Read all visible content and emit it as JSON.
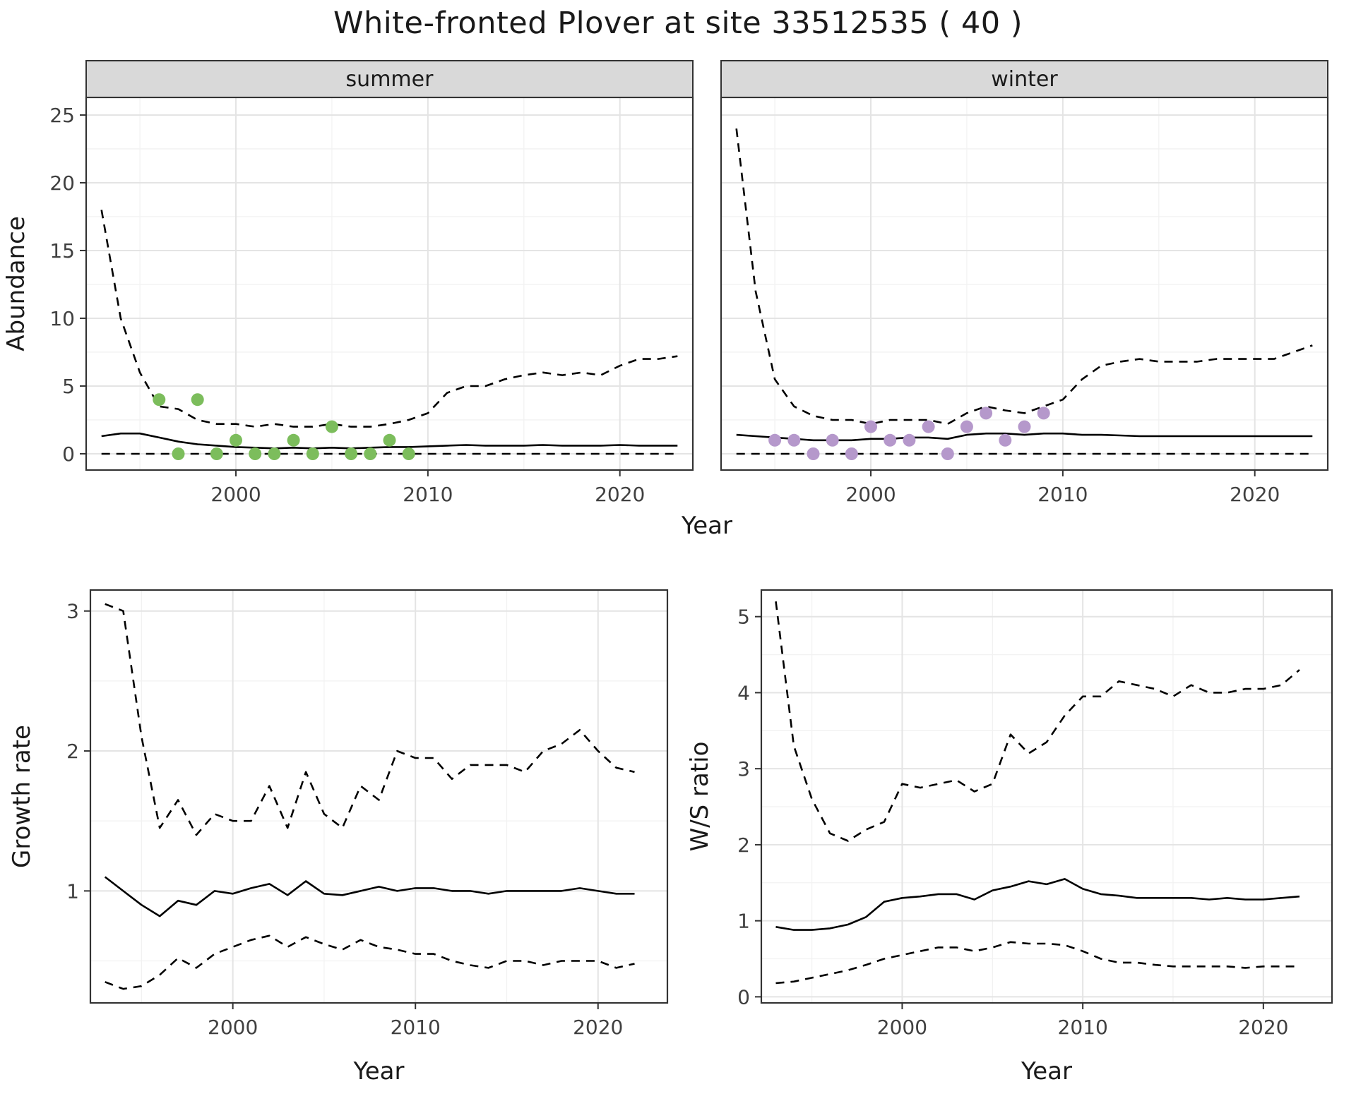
{
  "title": "White-fronted Plover at site 33512535 ( 40 )",
  "theme": {
    "background": "#ffffff",
    "line": "#000000",
    "border": "#333333",
    "grid_major": "#e4e4e4",
    "grid_minor": "#f2f2f2",
    "strip_fill": "#d9d9d9",
    "tick_text": "#404040",
    "title_text": "#1a1a1a",
    "summer_point": "#7cbd5c",
    "winter_point": "#b598cb"
  },
  "chart_data": [
    {
      "id": "abundance",
      "type": "line",
      "xlabel": "Year",
      "ylabel": "Abundance",
      "xlim": [
        1992.2,
        2023.8
      ],
      "ylim": [
        -1.2,
        26.3
      ],
      "xticks": [
        2000,
        2010,
        2020
      ],
      "yticks": [
        0,
        5,
        10,
        15,
        20,
        25
      ],
      "grid": true,
      "legend": "none",
      "x": [
        1993,
        1994,
        1995,
        1996,
        1997,
        1998,
        1999,
        2000,
        2001,
        2002,
        2003,
        2004,
        2005,
        2006,
        2007,
        2008,
        2009,
        2010,
        2011,
        2012,
        2013,
        2014,
        2015,
        2016,
        2017,
        2018,
        2019,
        2020,
        2021,
        2022,
        2023
      ],
      "facets": [
        {
          "label": "summer",
          "point_color": "#7cbd5c",
          "series": [
            {
              "name": "upper_95ci",
              "style": "dashed",
              "values": [
                18,
                10,
                6,
                3.5,
                3.3,
                2.5,
                2.2,
                2.2,
                2.0,
                2.2,
                2.0,
                2.0,
                2.2,
                2.0,
                2.0,
                2.2,
                2.5,
                3.0,
                4.5,
                5.0,
                5.0,
                5.5,
                5.8,
                6.0,
                5.8,
                6.0,
                5.8,
                6.5,
                7.0,
                7.0,
                7.2
              ]
            },
            {
              "name": "median",
              "style": "solid",
              "values": [
                1.3,
                1.5,
                1.5,
                1.2,
                0.9,
                0.7,
                0.6,
                0.5,
                0.45,
                0.4,
                0.45,
                0.4,
                0.45,
                0.4,
                0.45,
                0.5,
                0.5,
                0.55,
                0.6,
                0.65,
                0.6,
                0.6,
                0.6,
                0.65,
                0.6,
                0.6,
                0.6,
                0.65,
                0.6,
                0.6,
                0.6
              ]
            },
            {
              "name": "lower_95ci",
              "style": "dashed",
              "values": [
                0,
                0,
                0,
                0,
                0,
                0,
                0,
                0,
                0,
                0,
                0,
                0,
                0,
                0,
                0,
                0,
                0,
                0,
                0,
                0,
                0,
                0,
                0,
                0,
                0,
                0,
                0,
                0,
                0,
                0,
                0
              ]
            }
          ],
          "points": {
            "name": "observed_counts",
            "x": [
              1996,
              1997,
              1998,
              1999,
              2000,
              2001,
              2002,
              2003,
              2004,
              2005,
              2006,
              2007,
              2008,
              2009
            ],
            "y": [
              4,
              0,
              4,
              0,
              1,
              0,
              0,
              1,
              0,
              2,
              0,
              0,
              1,
              0
            ]
          }
        },
        {
          "label": "winter",
          "point_color": "#b598cb",
          "series": [
            {
              "name": "upper_95ci",
              "style": "dashed",
              "values": [
                24,
                12,
                5.5,
                3.5,
                2.8,
                2.5,
                2.5,
                2.2,
                2.5,
                2.5,
                2.5,
                2.2,
                3.0,
                3.5,
                3.2,
                3.0,
                3.5,
                4.0,
                5.5,
                6.5,
                6.8,
                7.0,
                6.8,
                6.8,
                6.8,
                7.0,
                7.0,
                7.0,
                7.0,
                7.5,
                8.0
              ]
            },
            {
              "name": "median",
              "style": "solid",
              "values": [
                1.4,
                1.3,
                1.2,
                1.1,
                1.0,
                1.0,
                1.0,
                1.1,
                1.1,
                1.2,
                1.2,
                1.1,
                1.4,
                1.5,
                1.5,
                1.4,
                1.5,
                1.5,
                1.4,
                1.4,
                1.35,
                1.3,
                1.3,
                1.3,
                1.3,
                1.3,
                1.3,
                1.3,
                1.3,
                1.3,
                1.3
              ]
            },
            {
              "name": "lower_95ci",
              "style": "dashed",
              "values": [
                0,
                0,
                0,
                0,
                0,
                0,
                0,
                0,
                0,
                0,
                0,
                0,
                0,
                0,
                0,
                0,
                0,
                0,
                0,
                0,
                0,
                0,
                0,
                0,
                0,
                0,
                0,
                0,
                0,
                0,
                0
              ]
            }
          ],
          "points": {
            "name": "observed_counts",
            "x": [
              1995,
              1996,
              1997,
              1998,
              1999,
              2000,
              2001,
              2002,
              2003,
              2004,
              2005,
              2006,
              2007,
              2008,
              2009
            ],
            "y": [
              1,
              1,
              0,
              1,
              0,
              2,
              1,
              1,
              2,
              0,
              2,
              3,
              1,
              2,
              3
            ]
          }
        }
      ]
    },
    {
      "id": "growth_rate",
      "type": "line",
      "xlabel": "Year",
      "ylabel": "Growth rate",
      "xlim": [
        1992.2,
        2023.8
      ],
      "ylim": [
        0.2,
        3.15
      ],
      "xticks": [
        2000,
        2010,
        2020
      ],
      "yticks": [
        1,
        2,
        3
      ],
      "grid": true,
      "legend": "none",
      "x": [
        1993,
        1994,
        1995,
        1996,
        1997,
        1998,
        1999,
        2000,
        2001,
        2002,
        2003,
        2004,
        2005,
        2006,
        2007,
        2008,
        2009,
        2010,
        2011,
        2012,
        2013,
        2014,
        2015,
        2016,
        2017,
        2018,
        2019,
        2020,
        2021,
        2022
      ],
      "series": [
        {
          "name": "upper_95ci",
          "style": "dashed",
          "values": [
            3.05,
            3.0,
            2.1,
            1.45,
            1.65,
            1.4,
            1.55,
            1.5,
            1.5,
            1.75,
            1.45,
            1.85,
            1.55,
            1.45,
            1.75,
            1.65,
            2.0,
            1.95,
            1.95,
            1.8,
            1.9,
            1.9,
            1.9,
            1.85,
            2.0,
            2.05,
            2.15,
            2.0,
            1.88,
            1.85
          ]
        },
        {
          "name": "median",
          "style": "solid",
          "values": [
            1.1,
            1.0,
            0.9,
            0.82,
            0.93,
            0.9,
            1.0,
            0.98,
            1.02,
            1.05,
            0.97,
            1.07,
            0.98,
            0.97,
            1.0,
            1.03,
            1.0,
            1.02,
            1.02,
            1.0,
            1.0,
            0.98,
            1.0,
            1.0,
            1.0,
            1.0,
            1.02,
            1.0,
            0.98,
            0.98
          ]
        },
        {
          "name": "lower_95ci",
          "style": "dashed",
          "values": [
            0.35,
            0.3,
            0.32,
            0.4,
            0.52,
            0.45,
            0.55,
            0.6,
            0.65,
            0.68,
            0.6,
            0.67,
            0.62,
            0.58,
            0.65,
            0.6,
            0.58,
            0.55,
            0.55,
            0.5,
            0.47,
            0.45,
            0.5,
            0.5,
            0.47,
            0.5,
            0.5,
            0.5,
            0.45,
            0.48
          ]
        }
      ]
    },
    {
      "id": "ws_ratio",
      "type": "line",
      "xlabel": "Year",
      "ylabel": "W/S ratio",
      "xlim": [
        1992.2,
        2023.8
      ],
      "ylim": [
        -0.08,
        5.35
      ],
      "xticks": [
        2000,
        2010,
        2020
      ],
      "yticks": [
        0,
        1,
        2,
        3,
        4,
        5
      ],
      "grid": true,
      "legend": "none",
      "x": [
        1993,
        1994,
        1995,
        1996,
        1997,
        1998,
        1999,
        2000,
        2001,
        2002,
        2003,
        2004,
        2005,
        2006,
        2007,
        2008,
        2009,
        2010,
        2011,
        2012,
        2013,
        2014,
        2015,
        2016,
        2017,
        2018,
        2019,
        2020,
        2021,
        2022
      ],
      "series": [
        {
          "name": "upper_95ci",
          "style": "dashed",
          "values": [
            5.2,
            3.3,
            2.6,
            2.15,
            2.05,
            2.2,
            2.3,
            2.8,
            2.75,
            2.8,
            2.85,
            2.7,
            2.8,
            3.45,
            3.2,
            3.35,
            3.7,
            3.95,
            3.95,
            4.15,
            4.1,
            4.05,
            3.95,
            4.1,
            4.0,
            4.0,
            4.05,
            4.05,
            4.1,
            4.3
          ]
        },
        {
          "name": "median",
          "style": "solid",
          "values": [
            0.92,
            0.88,
            0.88,
            0.9,
            0.95,
            1.05,
            1.25,
            1.3,
            1.32,
            1.35,
            1.35,
            1.28,
            1.4,
            1.45,
            1.52,
            1.48,
            1.55,
            1.42,
            1.35,
            1.33,
            1.3,
            1.3,
            1.3,
            1.3,
            1.28,
            1.3,
            1.28,
            1.28,
            1.3,
            1.32
          ]
        },
        {
          "name": "lower_95ci",
          "style": "dashed",
          "values": [
            0.18,
            0.2,
            0.25,
            0.3,
            0.35,
            0.42,
            0.5,
            0.55,
            0.6,
            0.65,
            0.65,
            0.6,
            0.65,
            0.72,
            0.7,
            0.7,
            0.68,
            0.6,
            0.5,
            0.45,
            0.45,
            0.42,
            0.4,
            0.4,
            0.4,
            0.4,
            0.38,
            0.4,
            0.4,
            0.4
          ]
        }
      ]
    }
  ]
}
